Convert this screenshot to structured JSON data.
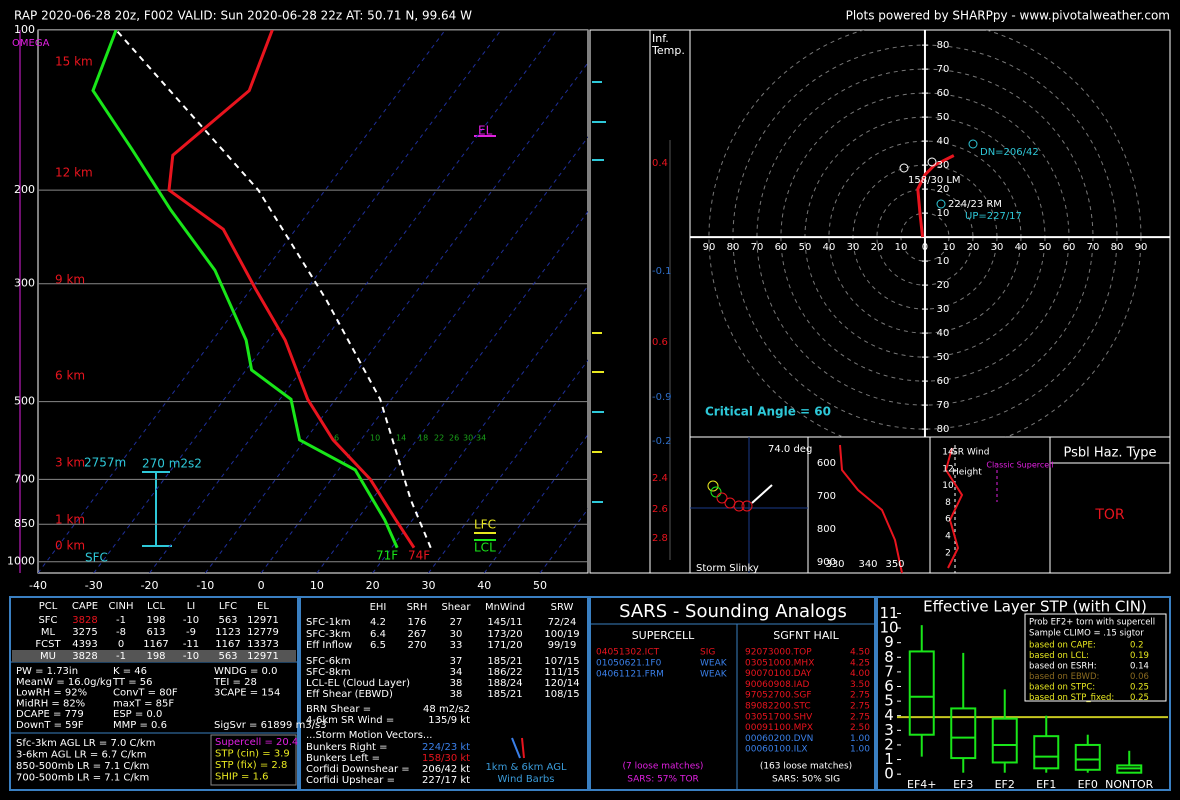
{
  "header": {
    "title": "RAP 2020-06-28 20z, F002  VALID: Sun 2020-06-28 22z  AT: 50.71 N, 99.64 W",
    "credit": "Plots powered by SHARPpy - www.pivotalweather.com"
  },
  "chart_data": [
    {
      "type": "skewt",
      "log_y": true,
      "xlim": [
        -40,
        58.6
      ],
      "ylim": [
        1050,
        100
      ],
      "xticks": [
        -40,
        -30,
        -20,
        -10,
        0,
        10,
        20,
        30,
        40,
        50
      ],
      "yticks": [
        100,
        200,
        300,
        500,
        700,
        850,
        1000
      ],
      "series": [
        {
          "color": "#e8141e",
          "pressure": [
            941,
            834,
            700,
            590,
            495,
            383,
            308,
            237,
            200,
            172,
            130,
            100
          ],
          "values": [
            24,
            17,
            7,
            -5,
            -15,
            -27,
            -39,
            -53,
            -68,
            -72,
            -67,
            -71
          ]
        },
        {
          "color": "#19e619",
          "pressure": [
            941,
            834,
            672,
            590,
            495,
            436,
            383,
            283,
            218,
            168,
            130,
            100
          ],
          "values": [
            21,
            15,
            3,
            -11,
            -18,
            -29,
            -34,
            -49,
            -65,
            -80,
            -95,
            -99
          ]
        },
        {
          "color": "#ffffff",
          "dashed": true,
          "pressure": [
            941,
            765,
            495,
            322,
            200,
            100
          ],
          "values": [
            27,
            17,
            -2,
            -25,
            -52,
            -99
          ]
        }
      ],
      "annotations": [
        {
          "text": "OMEGA",
          "color": "#e020e0"
        },
        {
          "text": "15 km",
          "color": "#e8141e"
        },
        {
          "text": "12 km",
          "color": "#e8141e"
        },
        {
          "text": "9 km",
          "color": "#e8141e"
        },
        {
          "text": "6 km",
          "color": "#e8141e"
        },
        {
          "text": "3 km",
          "color": "#e8141e"
        },
        {
          "text": "2757m",
          "color": "#2ec8d8"
        },
        {
          "text": "1 km",
          "color": "#e8141e"
        },
        {
          "text": "0 km",
          "color": "#e8141e"
        },
        {
          "text": "270 m2s2",
          "color": "#2ec8d8"
        },
        {
          "text": "SFC",
          "color": "#2ec8d8"
        },
        {
          "text": "71F",
          "color": "#19e619"
        },
        {
          "text": "74F",
          "color": "#e8141e"
        },
        {
          "text": "LFC",
          "color": "#e8e820"
        },
        {
          "text": "LCL",
          "color": "#19e619"
        },
        {
          "text": "EL",
          "color": "#e020e0"
        },
        {
          "text": "6",
          "color": "#19a019"
        },
        {
          "text": "10",
          "color": "#19a019"
        },
        {
          "text": "14",
          "color": "#19a019"
        },
        {
          "text": "18",
          "color": "#19a019"
        },
        {
          "text": "22",
          "color": "#19a019"
        },
        {
          "text": "26",
          "color": "#19a019"
        },
        {
          "text": "30",
          "color": "#19a019"
        },
        {
          "text": "34",
          "color": "#19a019"
        }
      ]
    },
    {
      "type": "hodograph",
      "xlim": [
        -97.9,
        102.1
      ],
      "ylim": [
        -83.3,
        86.3
      ],
      "xticks": [
        {
          "value": -90,
          "label": "90"
        },
        {
          "value": -80,
          "label": "80"
        },
        {
          "value": -70,
          "label": "70"
        },
        {
          "value": -60,
          "label": "60"
        },
        {
          "value": -50,
          "label": "50"
        },
        {
          "value": -40,
          "label": "40"
        },
        {
          "value": -30,
          "label": "30"
        },
        {
          "value": -20,
          "label": "20"
        },
        {
          "value": -10,
          "label": "10"
        },
        0,
        10,
        20,
        30,
        40,
        50,
        60,
        70,
        80,
        90
      ],
      "yticks": [
        {
          "value": -80,
          "label": "80"
        },
        {
          "value": -70,
          "label": "70"
        },
        {
          "value": -60,
          "label": "60"
        },
        {
          "value": -50,
          "label": "50"
        },
        {
          "value": -40,
          "label": "40"
        },
        {
          "value": -30,
          "label": "30"
        },
        {
          "value": -20,
          "label": "20"
        },
        {
          "value": -10,
          "label": "10"
        },
        10,
        20,
        30,
        40,
        50,
        60,
        70,
        80
      ],
      "series": [
        {
          "color": "#e8141e",
          "x": [
            -1,
            -2,
            -3,
            0,
            4,
            8,
            12
          ],
          "values": [
            0,
            9,
            20,
            26,
            30,
            32,
            34
          ]
        }
      ],
      "annotations": [
        {
          "text": "DN=206/42",
          "color": "#2ec8d8"
        },
        {
          "text": "158/30 LM",
          "color": "#ffffff"
        },
        {
          "text": "224/23 RM",
          "color": "#ffffff"
        },
        {
          "text": "UP=227/17",
          "color": "#2ec8d8"
        },
        {
          "text": "Critical Angle = 60",
          "color": "#2ec8d8"
        }
      ]
    },
    {
      "type": "box",
      "title": "Effective Layer STP (with CIN)",
      "categories": [
        "EF4+",
        "EF3",
        "EF2",
        "EF1",
        "EF0",
        "NONTOR"
      ],
      "ylim": [
        -0.4,
        11.1
      ],
      "yticks": [
        0,
        1,
        2,
        3,
        4,
        5,
        6,
        7,
        8,
        9,
        10,
        11
      ],
      "color": "#19e619",
      "reference": 3.9,
      "reference_color": "#c8c820",
      "boxes": [
        {
          "min": 1.2,
          "q1": 2.7,
          "median": 5.3,
          "q3": 8.4,
          "max": 10.2
        },
        {
          "min": 0.1,
          "q1": 1.1,
          "median": 2.5,
          "q3": 4.5,
          "max": 8.3
        },
        {
          "min": 0.1,
          "q1": 0.8,
          "median": 2.0,
          "q3": 3.8,
          "max": 5.8
        },
        {
          "min": 0.1,
          "q1": 0.4,
          "median": 1.2,
          "q3": 2.6,
          "max": 4.0
        },
        {
          "min": 0.1,
          "q1": 0.3,
          "median": 1.0,
          "q3": 2.0,
          "max": 2.7
        },
        {
          "min": 0.1,
          "q1": 0.1,
          "median": 0.4,
          "q3": 0.6,
          "max": 1.6
        }
      ],
      "inset": {
        "title": "Prob EF2+ torn with supercell",
        "subtitle": "Sample CLIMO = .15 sigtor",
        "rows": [
          {
            "label": "based on CAPE:",
            "value": 0.2,
            "color": "#e8e820"
          },
          {
            "label": "based on LCL:",
            "value": 0.19,
            "color": "#e8e820"
          },
          {
            "label": "based on ESRH:",
            "value": 0.14,
            "color": "#ffffff"
          },
          {
            "label": "based on EBWD:",
            "value": 0.06,
            "color": "#8a6a20"
          },
          {
            "label": "based on STPC:",
            "value": 0.25,
            "color": "#e8e820"
          },
          {
            "label": "based on STP_fixed:",
            "value": 0.25,
            "color": "#e8e820"
          }
        ]
      }
    }
  ],
  "inferred_temp": {
    "label": [
      "Inf.",
      "Temp."
    ],
    "values": [
      "0.4",
      "-0.1",
      "0.6",
      "-0.9",
      "-0.2",
      "2.4",
      "2.6",
      "2.8"
    ]
  },
  "slinky": {
    "angle": "74.0 deg",
    "title": "Storm Slinky"
  },
  "theta_panel": {
    "xticks": [
      330,
      340,
      350
    ],
    "yticks": [
      600,
      700,
      800,
      900
    ]
  },
  "sr_wind": {
    "title": "SR Wind",
    "ylabel": "Height",
    "note": "Classic Supercell",
    "yticks": [
      14,
      12,
      10,
      8,
      6,
      4,
      2
    ]
  },
  "hazard": {
    "title": "Psbl Haz. Type",
    "value": "TOR"
  },
  "parcel_table": {
    "headers": [
      "PCL",
      "CAPE",
      "CINH",
      "LCL",
      "LI",
      "LFC",
      "EL"
    ],
    "rows": [
      [
        "SFC",
        3828,
        -1,
        198,
        -10,
        563,
        12971
      ],
      [
        "ML",
        3275,
        -8,
        613,
        -9,
        1123,
        12779
      ],
      [
        "FCST",
        4393,
        0,
        1167,
        -11,
        1167,
        13373
      ],
      [
        "MU",
        3828,
        -1,
        198,
        -10,
        563,
        12971
      ]
    ],
    "indices": [
      [
        "PW = 1.73in",
        "K = 46",
        "WNDG = 0.0"
      ],
      [
        "MeanW = 16.0g/kg",
        "TT = 56",
        "TEI = 28"
      ],
      [
        "LowRH = 92%",
        "ConvT = 80F",
        "3CAPE = 154"
      ],
      [
        "MidRH = 82%",
        "maxT = 85F"
      ],
      [
        "DCAPE = 779",
        "ESP = 0.0"
      ],
      [
        "DownT = 59F",
        "MMP = 0.6",
        "SigSvr = 61899 m3/s3"
      ]
    ],
    "lapse_rates": [
      "Sfc-3km AGL LR = 7.0 C/km",
      "3-6km AGL LR = 6.7 C/km",
      "850-500mb LR = 7.1 C/km",
      "700-500mb LR = 7.1 C/km"
    ],
    "composites": [
      {
        "text": "Supercell = 20.4",
        "color": "#e020e0"
      },
      {
        "text": "STP (cin) = 3.9",
        "color": "#e8e820"
      },
      {
        "text": "STP (fix) = 2.8",
        "color": "#e8e820"
      },
      {
        "text": "SHIP = 1.6",
        "color": "#e8e820"
      }
    ]
  },
  "kinematic_table": {
    "headers": [
      "EHI",
      "SRH",
      "Shear",
      "MnWind",
      "SRW"
    ],
    "rows": [
      {
        "label": "SFC-1km",
        "ehi": 4.2,
        "srh": 176,
        "shear": 27,
        "mnwind": "145/11",
        "srw": "72/24"
      },
      {
        "label": "SFC-3km",
        "ehi": 6.4,
        "srh": 267,
        "shear": 30,
        "mnwind": "173/20",
        "srw": "100/19"
      },
      {
        "label": "Eff Inflow",
        "ehi": 6.5,
        "srh": 270,
        "shear": 33,
        "mnwind": "171/20",
        "srw": "99/19"
      },
      {
        "label": "SFC-6km",
        "shear": 37,
        "mnwind": "185/21",
        "srw": "107/15"
      },
      {
        "label": "SFC-8km",
        "shear": 34,
        "mnwind": "186/22",
        "srw": "111/15"
      },
      {
        "label": "LCL-EL (Cloud Layer)",
        "shear": 38,
        "mnwind": "188/24",
        "srw": "120/14"
      },
      {
        "label": "Eff Shear (EBWD)",
        "shear": 38,
        "mnwind": "185/21",
        "srw": "108/15"
      }
    ],
    "extras": [
      {
        "label": "BRN Shear =",
        "value": "48 m2/s2"
      },
      {
        "label": "4-6km SR Wind =",
        "value": "135/9 kt"
      }
    ],
    "motion_title": "...Storm Motion Vectors...",
    "motions": [
      {
        "label": "Bunkers Right =",
        "value": "224/23 kt",
        "color": "#3a7fe8"
      },
      {
        "label": "Bunkers Left =",
        "value": "158/30 kt",
        "color": "#e8141e"
      },
      {
        "label": "Corfidi Downshear =",
        "value": "206/42 kt",
        "color": "#ffffff"
      },
      {
        "label": "Corfidi Upshear =",
        "value": "227/17 kt",
        "color": "#ffffff"
      }
    ],
    "barb_note": [
      "1km & 6km AGL",
      "Wind Barbs"
    ]
  },
  "sars": {
    "title": "SARS - Sounding Analogs",
    "supercell": {
      "title": "SUPERCELL",
      "matches": [
        {
          "name": "04051302.ICT",
          "class": "SIG",
          "color": "#e8141e"
        },
        {
          "name": "01050621.1F0",
          "class": "WEAK",
          "color": "#3a7fe8"
        },
        {
          "name": "04061121.FRM",
          "class": "WEAK",
          "color": "#3a7fe8"
        }
      ],
      "loose": "(7 loose matches)",
      "summary": "SARS: 57% TOR"
    },
    "hail": {
      "title": "SGFNT HAIL",
      "matches": [
        {
          "name": "92073000.TOP",
          "size": "4.50",
          "color": "#e8141e"
        },
        {
          "name": "03051000.MHX",
          "size": "4.25",
          "color": "#e8141e"
        },
        {
          "name": "90070100.DAY",
          "size": "4.00",
          "color": "#e8141e"
        },
        {
          "name": "90060908.IAD",
          "size": "3.50",
          "color": "#e8141e"
        },
        {
          "name": "97052700.SGF",
          "size": "2.75",
          "color": "#e8141e"
        },
        {
          "name": "89082200.STC",
          "size": "2.75",
          "color": "#e8141e"
        },
        {
          "name": "03051700.SHV",
          "size": "2.75",
          "color": "#e8141e"
        },
        {
          "name": "00091100.MPX",
          "size": "2.50",
          "color": "#e8141e"
        },
        {
          "name": "00060200.DVN",
          "size": "1.00",
          "color": "#3a7fe8"
        },
        {
          "name": "00060100.ILX",
          "size": "1.00",
          "color": "#3a7fe8"
        }
      ],
      "loose": "(163 loose matches)",
      "summary": "SARS: 50% SIG"
    }
  }
}
